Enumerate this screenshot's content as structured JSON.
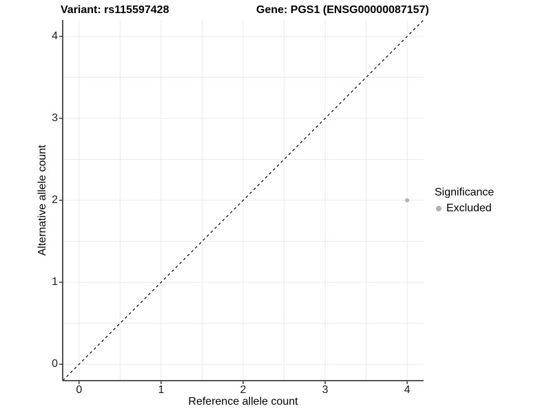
{
  "page": {
    "background": "#ffffff"
  },
  "chart_data": {
    "type": "scatter",
    "titles": {
      "left": "Variant: rs115597428",
      "right": "Gene: PGS1 (ENSG00000087157)"
    },
    "xlabel": "Reference allele count",
    "ylabel": "Alternative allele count",
    "xlim": [
      -0.2,
      4.2
    ],
    "ylim": [
      -0.2,
      4.2
    ],
    "xticks": [
      0,
      1,
      2,
      3,
      4
    ],
    "yticks": [
      0,
      1,
      2,
      3,
      4
    ],
    "grid": {
      "show": true,
      "interval": 0.5,
      "color": "#e9e9e9"
    },
    "identity_line": {
      "style": "dashed",
      "x1": -0.2,
      "y1": -0.2,
      "x2": 4.2,
      "y2": 4.2,
      "color": "#000000"
    },
    "points": [
      {
        "x": 4,
        "y": 2,
        "significance": "Excluded",
        "color": "#b0b0b0",
        "radius": 3
      }
    ],
    "legend": {
      "title": "Significance",
      "position": "right",
      "items": [
        {
          "label": "Excluded",
          "color": "#b0b0b0"
        }
      ]
    },
    "axis_color": "#3f3f3f"
  }
}
